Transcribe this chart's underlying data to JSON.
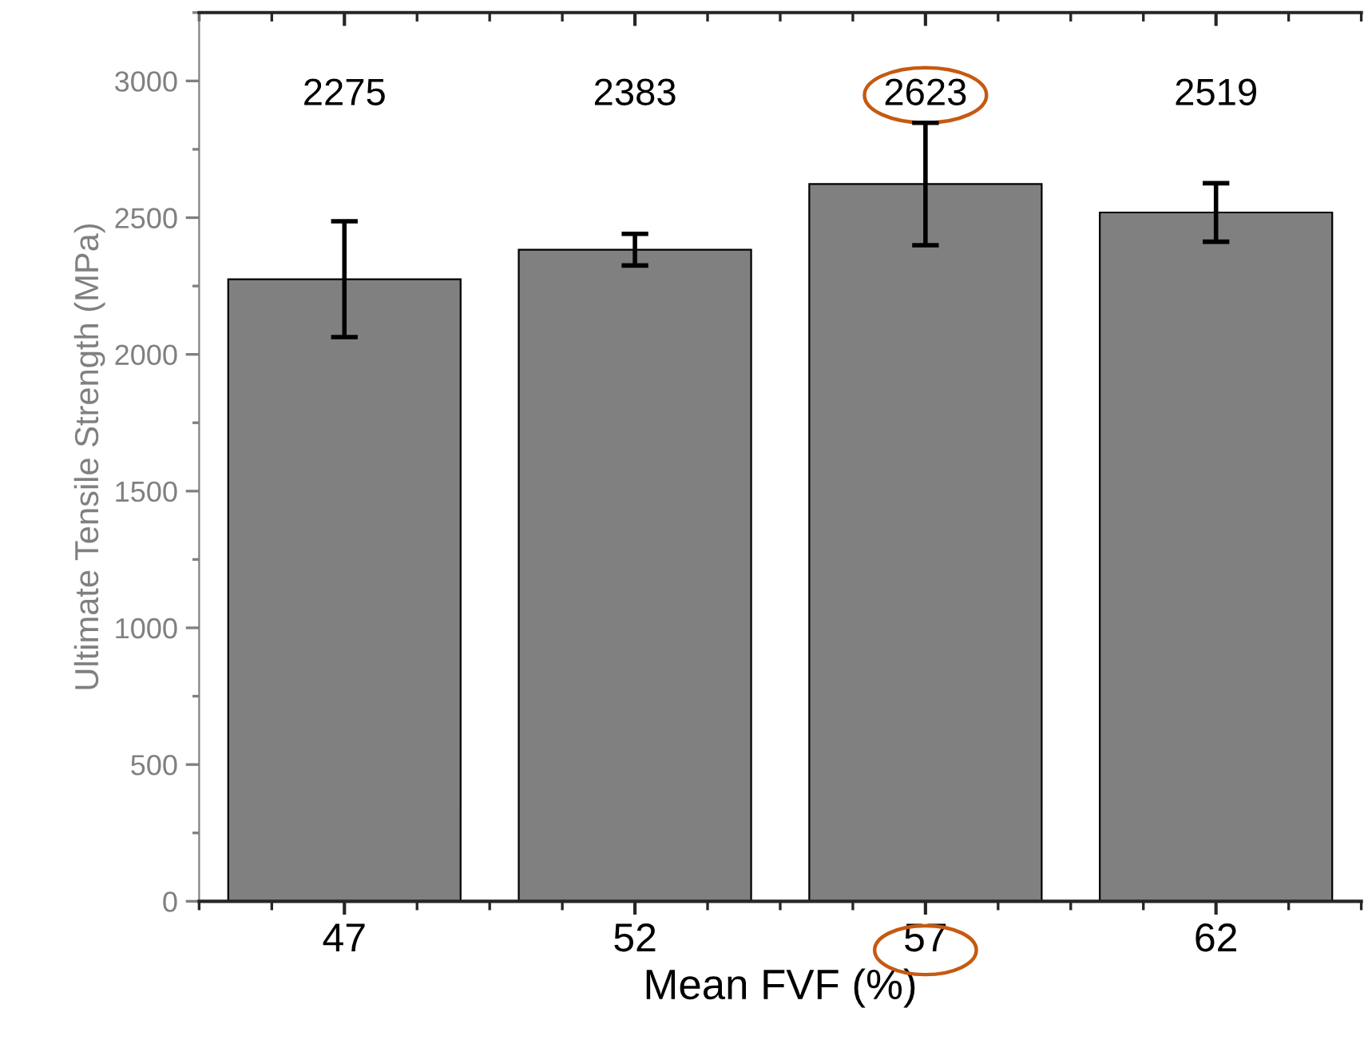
{
  "chart_data": {
    "type": "bar",
    "xlabel": "Mean FVF (%)",
    "ylabel": "Ultimate Tensile Strength (MPa)",
    "categories": [
      "47",
      "52",
      "57",
      "62"
    ],
    "values": [
      2275,
      2383,
      2623,
      2519
    ],
    "errors": [
      212,
      58,
      224,
      107
    ],
    "color": "#808080",
    "annotations": [
      "2275",
      "2383",
      "2623",
      "2519"
    ],
    "ylim": [
      0,
      3250
    ],
    "yticks": [
      0,
      500,
      1000,
      1500,
      2000,
      2500,
      3000
    ],
    "grid": false,
    "legend": false
  }
}
